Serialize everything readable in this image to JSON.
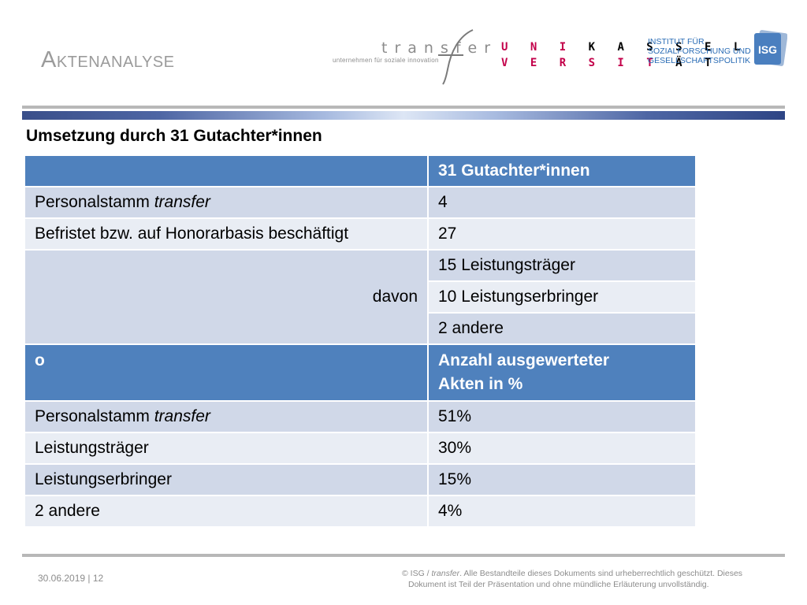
{
  "header": {
    "title": "Aktenanalyse",
    "transfer_logo": {
      "word": "transfer",
      "tagline": "unternehmen für soziale innovation"
    },
    "uni_logo": {
      "line1_red": "U N I",
      "line1_black": "K A S S E L",
      "line2_red": "V E R S I T",
      "line2_black": "Ä T"
    },
    "institut_logo": {
      "lines": [
        "INSTITUT FÜR",
        "SOZIALFORSCHUNG UND",
        "GESELLSCHAFTSPOLITIK"
      ],
      "badge": "ISG"
    }
  },
  "subheading": "Umsetzung durch 31 Gutachter*innen",
  "table": {
    "header1": {
      "col1": "",
      "col2": "31 Gutachter*innen"
    },
    "row1": {
      "col1_plain": "Personalstamm ",
      "col1_italic": "transfer",
      "col2": "4"
    },
    "row2": {
      "col1": "Befristet bzw. auf Honorarbasis beschäftigt",
      "col2": "27"
    },
    "davon_label": "davon",
    "davon_rows": [
      "15 Leistungsträger",
      "10 Leistungserbringer",
      "2   andere"
    ],
    "header2": {
      "col1": "o",
      "col2_line1": "Anzahl ausgewerteter",
      "col2_line2": "Akten in %"
    },
    "row3": {
      "col1_plain": "Personalstamm ",
      "col1_italic": "transfer",
      "col2": "51%"
    },
    "row4": {
      "col1": "Leistungsträger",
      "col2": "30%"
    },
    "row5": {
      "col1": "Leistungserbringer",
      "col2": "15%"
    },
    "row6": {
      "col1": "2   andere",
      "col2": "4%"
    }
  },
  "footer": {
    "date_page": "30.06.2019 | 12",
    "copy_prefix": "©  ISG / ",
    "copy_italic": "transfer",
    "copy_line1_rest": ". Alle Bestandteile dieses Dokuments sind urheberrechtlich geschützt. Dieses",
    "copy_line2": "Dokument ist Teil der Präsentation und ohne mündliche Erläuterung unvollständig."
  },
  "colors": {
    "header_blue": "#4f81bd",
    "row_dark": "#d0d8e8",
    "row_light": "#e9edf4",
    "uni_red": "#c3004a"
  }
}
